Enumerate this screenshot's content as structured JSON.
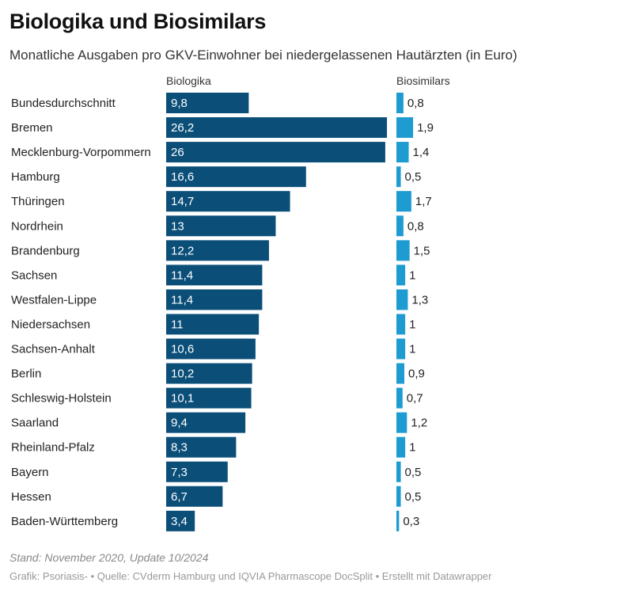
{
  "chart_data": {
    "type": "bar",
    "title": "Biologika und Biosimilars",
    "subtitle": "Monatliche Ausgaben pro GKV-Einwohner bei niedergelassenen Hautärzten (in Euro)",
    "categories": [
      "Bundesdurchschnitt",
      "Bremen",
      "Mecklenburg-Vorpommern",
      "Hamburg",
      "Thüringen",
      "Nordrhein",
      "Brandenburg",
      "Sachsen",
      "Westfalen-Lippe",
      "Niedersachsen",
      "Sachsen-Anhalt",
      "Berlin",
      "Schleswig-Holstein",
      "Saarland",
      "Rheinland-Pfalz",
      "Bayern",
      "Hessen",
      "Baden-Württemberg"
    ],
    "series": [
      {
        "name": "Biologika",
        "values": [
          9.8,
          26.2,
          26,
          16.6,
          14.7,
          13,
          12.2,
          11.4,
          11.4,
          11,
          10.6,
          10.2,
          10.1,
          9.4,
          8.3,
          7.3,
          6.7,
          3.4
        ],
        "labels": [
          "9,8",
          "26,2",
          "26",
          "16,6",
          "14,7",
          "13",
          "12,2",
          "11,4",
          "11,4",
          "11",
          "10,6",
          "10,2",
          "10,1",
          "9,4",
          "8,3",
          "7,3",
          "6,7",
          "3,4"
        ],
        "color": "#0b4f79"
      },
      {
        "name": "Biosimilars",
        "values": [
          0.8,
          1.9,
          1.4,
          0.5,
          1.7,
          0.8,
          1.5,
          1,
          1.3,
          1,
          1,
          0.9,
          0.7,
          1.2,
          1,
          0.5,
          0.5,
          0.3
        ],
        "labels": [
          "0,8",
          "1,9",
          "1,4",
          "0,5",
          "1,7",
          "0,8",
          "1,5",
          "1",
          "1,3",
          "1",
          "1",
          "0,9",
          "0,7",
          "1,2",
          "1",
          "0,5",
          "0,5",
          "0,3"
        ],
        "color": "#1e9bd0"
      }
    ],
    "notes": "Stand: November 2020, Update 10/2024",
    "byline": "Grafik: Psoriasis- • Quelle: CVderm Hamburg und IQVIA Pharmascope DocSplit • Erstellt mit Datawrapper"
  }
}
